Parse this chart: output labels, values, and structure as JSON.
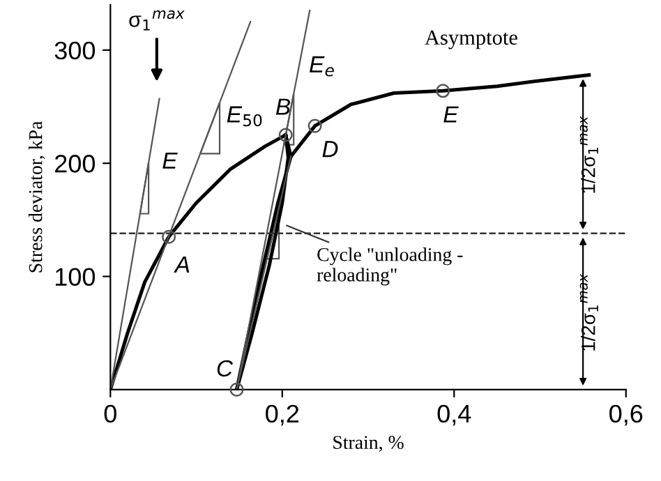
{
  "chart_data": {
    "type": "line",
    "xlabel": "Strain, %",
    "ylabel": "Stress deviator, kPa",
    "xlim": [
      0,
      0.6
    ],
    "ylim": [
      0,
      340
    ],
    "xticks": [
      {
        "value": 0,
        "label": "0"
      },
      {
        "value": 0.2,
        "label": "0,2"
      },
      {
        "value": 0.4,
        "label": "0,4"
      },
      {
        "value": 0.6,
        "label": "0,6"
      }
    ],
    "yticks": [
      {
        "value": 100,
        "label": "100"
      },
      {
        "value": 200,
        "label": "200"
      },
      {
        "value": 300,
        "label": "300"
      }
    ],
    "grid": false,
    "legend": false,
    "marker": "none",
    "line_style": "solid",
    "series": [
      {
        "color": "#000000",
        "x": [
          0,
          0.02,
          0.04,
          0.068,
          0.1,
          0.14,
          0.18,
          0.204
        ],
        "values": [
          0,
          50,
          95,
          135,
          165,
          195,
          215,
          225
        ]
      },
      {
        "color": "#000000",
        "x": [
          0.204,
          0.207,
          0.2,
          0.185,
          0.165,
          0.147
        ],
        "values": [
          225,
          205,
          165,
          110,
          50,
          0
        ]
      },
      {
        "color": "#000000",
        "x": [
          0.147,
          0.158,
          0.175,
          0.195,
          0.21
        ],
        "values": [
          0,
          40,
          100,
          165,
          206
        ]
      },
      {
        "color": "#000000",
        "x": [
          0.204,
          0.21,
          0.238,
          0.28,
          0.33,
          0.387,
          0.45,
          0.5,
          0.557
        ],
        "values": [
          225,
          206,
          233,
          252,
          262,
          264,
          268,
          273,
          278
        ]
      },
      {
        "color": "#555555",
        "x": [
          0,
          0.057
        ],
        "values": [
          0,
          257
        ]
      },
      {
        "color": "#555555",
        "x": [
          0,
          0.163
        ],
        "values": [
          0,
          325
        ]
      },
      {
        "color": "#555555",
        "x": [
          0.147,
          0.232
        ],
        "values": [
          0,
          335
        ]
      },
      {
        "color": "#555555",
        "x": [
          0.147,
          0.21
        ],
        "values": [
          0,
          206
        ]
      },
      {
        "type": "scatter",
        "marker": "circle",
        "color": "#555555",
        "x": [
          0.068,
          0.204,
          0.147,
          0.238,
          0.387
        ],
        "values": [
          135,
          225,
          0,
          233,
          264
        ]
      }
    ],
    "ref_lines": [
      {
        "axis": "y",
        "value": 138,
        "line_style": "dashed",
        "color": "#333333"
      }
    ],
    "annotations": [
      "σ$_{1}$$^{max}$",
      "Asymptote",
      "E",
      "E$_{50}$",
      "E$_{e}$",
      "A",
      "B",
      "C",
      "D",
      "E",
      "Cycle \"unloading -\nreloading\"",
      "1/2σ$_{1}$$^{max}$",
      "1/2σ$_{1}$$^{max}$"
    ]
  }
}
